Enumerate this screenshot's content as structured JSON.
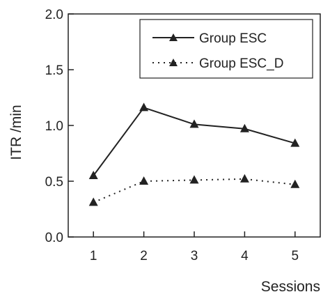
{
  "chart_data": {
    "type": "line",
    "xlabel": "Sessions",
    "ylabel": "ITR /min",
    "x": [
      1,
      2,
      3,
      4,
      5
    ],
    "xticks": [
      "1",
      "2",
      "3",
      "4",
      "5"
    ],
    "yticks": [
      "0.0",
      "0.5",
      "1.0",
      "1.5",
      "2.0"
    ],
    "xlim": [
      0.5,
      5.5
    ],
    "ylim": [
      0,
      2.0
    ],
    "grid": false,
    "legend_position": "top-right",
    "series": [
      {
        "name": "Group ESC",
        "values": [
          0.55,
          1.16,
          1.01,
          0.97,
          0.84
        ],
        "line_style": "solid",
        "marker": "triangle"
      },
      {
        "name": "Group ESC_D",
        "values": [
          0.31,
          0.5,
          0.51,
          0.52,
          0.47
        ],
        "line_style": "dotted",
        "marker": "triangle"
      }
    ],
    "colors": {
      "line": "#222222",
      "background": "#ffffff"
    }
  }
}
